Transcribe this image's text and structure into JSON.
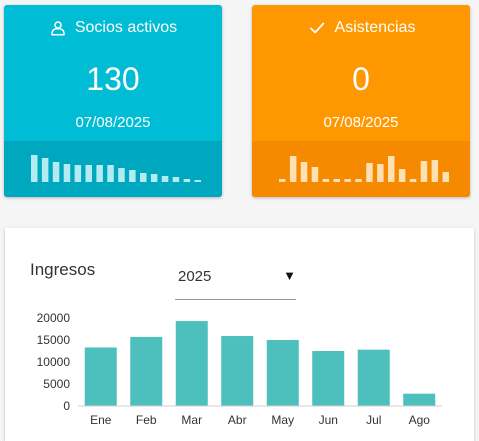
{
  "cards": {
    "socios": {
      "title": "Socios activos",
      "icon": "person-icon",
      "value": "130",
      "date": "07/08/2025",
      "color": "#00bcd4",
      "spark_color": "#b2ebf2",
      "spark_values": [
        27,
        24,
        20,
        18,
        17,
        17,
        17,
        17,
        14,
        12,
        9,
        8,
        6,
        5,
        3,
        2
      ]
    },
    "asistencias": {
      "title": "Asistencias",
      "icon": "check-icon",
      "value": "0",
      "date": "07/08/2025",
      "color": "#ff9800",
      "spark_color": "#ffe0b2",
      "spark_values": [
        3,
        26,
        20,
        15,
        3,
        3,
        3,
        3,
        19,
        18,
        26,
        13,
        3,
        21,
        22,
        10
      ]
    }
  },
  "ingresos": {
    "title": "Ingresos",
    "year_select": {
      "value": "2025",
      "caret": "▼"
    }
  },
  "chart_data": {
    "type": "bar",
    "categories": [
      "Ene",
      "Feb",
      "Mar",
      "Abr",
      "May",
      "Jun",
      "Jul",
      "Ago"
    ],
    "values": [
      13300,
      15700,
      19300,
      15900,
      15000,
      12500,
      12800,
      2800
    ],
    "ylim": [
      0,
      20000
    ],
    "yticks": [
      0,
      5000,
      10000,
      15000,
      20000
    ],
    "bar_color": "#4dbfbc",
    "grid": false
  }
}
